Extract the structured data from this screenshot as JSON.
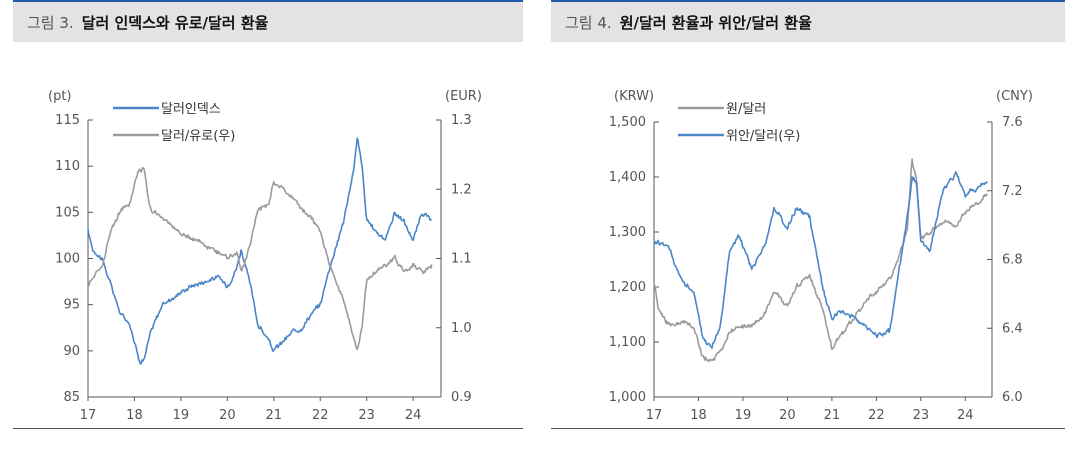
{
  "figures": [
    {
      "id": "fig3",
      "number": "그림 3.",
      "title": "달러 인덱스와 유로/달러 환율"
    },
    {
      "id": "fig4",
      "number": "그림 4.",
      "title": "원/달러 환율과 위안/달러 환율"
    }
  ],
  "chart_data": [
    {
      "type": "line",
      "left_unit": "(pt)",
      "right_unit": "(EUR)",
      "x_ticks": [
        "17",
        "18",
        "19",
        "20",
        "21",
        "22",
        "23",
        "24"
      ],
      "x_range": [
        2017.0,
        2024.6
      ],
      "y_left": {
        "range": [
          85,
          115
        ],
        "ticks": [
          "115",
          "110",
          "105",
          "100",
          "95",
          "90",
          "85"
        ]
      },
      "y_right": {
        "range": [
          0.9,
          1.3
        ],
        "ticks": [
          "1.3",
          "1.2",
          "1.1",
          "1.0",
          "0.9"
        ]
      },
      "series": [
        {
          "name": "달러인덱스",
          "axis": "left",
          "color": "#4a86c8",
          "x": [
            2017.0,
            2017.1,
            2017.3,
            2017.5,
            2017.7,
            2017.9,
            2018.1,
            2018.2,
            2018.35,
            2018.6,
            2018.9,
            2019.2,
            2019.5,
            2019.8,
            2020.0,
            2020.2,
            2020.3,
            2020.5,
            2020.65,
            2020.9,
            2021.0,
            2021.2,
            2021.4,
            2021.6,
            2021.8,
            2022.0,
            2022.2,
            2022.5,
            2022.7,
            2022.8,
            2022.9,
            2023.0,
            2023.2,
            2023.4,
            2023.6,
            2023.8,
            2024.0,
            2024.2,
            2024.4
          ],
          "y": [
            103,
            101,
            100,
            97,
            94,
            93,
            89,
            89,
            92,
            95,
            96,
            97,
            97.5,
            98,
            97,
            99,
            101,
            97,
            93,
            91,
            90,
            91,
            92,
            92.5,
            94,
            95,
            99,
            104,
            109,
            113,
            110,
            104,
            103,
            102,
            105,
            104,
            102,
            105,
            104
          ]
        },
        {
          "name": "달러/유로(우)",
          "axis": "right",
          "color": "#9b9b9b",
          "x": [
            2017.0,
            2017.1,
            2017.3,
            2017.5,
            2017.7,
            2017.9,
            2018.1,
            2018.2,
            2018.35,
            2018.6,
            2018.9,
            2019.2,
            2019.5,
            2019.8,
            2020.0,
            2020.2,
            2020.3,
            2020.5,
            2020.65,
            2020.9,
            2021.0,
            2021.2,
            2021.4,
            2021.6,
            2021.8,
            2022.0,
            2022.2,
            2022.5,
            2022.7,
            2022.8,
            2022.9,
            2023.0,
            2023.2,
            2023.4,
            2023.6,
            2023.8,
            2024.0,
            2024.2,
            2024.4
          ],
          "y": [
            1.06,
            1.07,
            1.09,
            1.14,
            1.17,
            1.18,
            1.23,
            1.23,
            1.17,
            1.16,
            1.14,
            1.13,
            1.12,
            1.11,
            1.1,
            1.11,
            1.08,
            1.12,
            1.17,
            1.18,
            1.21,
            1.2,
            1.19,
            1.17,
            1.16,
            1.14,
            1.09,
            1.04,
            0.99,
            0.97,
            1.0,
            1.07,
            1.08,
            1.09,
            1.1,
            1.08,
            1.09,
            1.08,
            1.09
          ]
        }
      ]
    },
    {
      "type": "line",
      "left_unit": "(KRW)",
      "right_unit": "(CNY)",
      "x_ticks": [
        "17",
        "18",
        "19",
        "20",
        "21",
        "22",
        "23",
        "24"
      ],
      "x_range": [
        2017.0,
        2024.6
      ],
      "y_left": {
        "range": [
          1000,
          1500
        ],
        "ticks": [
          "1,500",
          "1,400",
          "1,300",
          "1,200",
          "1,100",
          "1,000"
        ]
      },
      "y_right": {
        "range": [
          6.0,
          7.6
        ],
        "ticks": [
          "7.6",
          "7.2",
          "6.8",
          "6.4",
          "6.0"
        ]
      },
      "series": [
        {
          "name": "원/달러",
          "axis": "left",
          "color": "#9b9b9b",
          "x": [
            2017.0,
            2017.1,
            2017.3,
            2017.5,
            2017.7,
            2017.9,
            2018.1,
            2018.3,
            2018.5,
            2018.7,
            2018.9,
            2019.2,
            2019.5,
            2019.7,
            2020.0,
            2020.2,
            2020.5,
            2020.8,
            2021.0,
            2021.2,
            2021.5,
            2021.8,
            2022.0,
            2022.3,
            2022.5,
            2022.7,
            2022.8,
            2022.9,
            2023.0,
            2023.2,
            2023.5,
            2023.8,
            2024.0,
            2024.3,
            2024.5
          ],
          "y": [
            1205,
            1160,
            1135,
            1130,
            1135,
            1125,
            1070,
            1065,
            1080,
            1120,
            1125,
            1130,
            1150,
            1195,
            1165,
            1200,
            1220,
            1160,
            1090,
            1110,
            1145,
            1180,
            1190,
            1215,
            1250,
            1310,
            1430,
            1395,
            1290,
            1300,
            1320,
            1310,
            1340,
            1350,
            1370
          ]
        },
        {
          "name": "위안/달러(우)",
          "axis": "right",
          "color": "#4a86c8",
          "x": [
            2017.0,
            2017.1,
            2017.3,
            2017.5,
            2017.7,
            2017.9,
            2018.1,
            2018.3,
            2018.5,
            2018.7,
            2018.9,
            2019.2,
            2019.5,
            2019.7,
            2020.0,
            2020.2,
            2020.5,
            2020.8,
            2021.0,
            2021.2,
            2021.5,
            2021.8,
            2022.0,
            2022.3,
            2022.5,
            2022.7,
            2022.8,
            2022.9,
            2023.0,
            2023.2,
            2023.5,
            2023.8,
            2024.0,
            2024.3,
            2024.5
          ],
          "y": [
            6.9,
            6.9,
            6.88,
            6.76,
            6.65,
            6.62,
            6.33,
            6.29,
            6.43,
            6.85,
            6.95,
            6.75,
            6.88,
            7.1,
            6.98,
            7.1,
            7.05,
            6.62,
            6.45,
            6.5,
            6.46,
            6.4,
            6.36,
            6.38,
            6.72,
            7.05,
            7.28,
            7.25,
            6.9,
            6.85,
            7.2,
            7.3,
            7.18,
            7.22,
            7.25
          ]
        }
      ]
    }
  ]
}
